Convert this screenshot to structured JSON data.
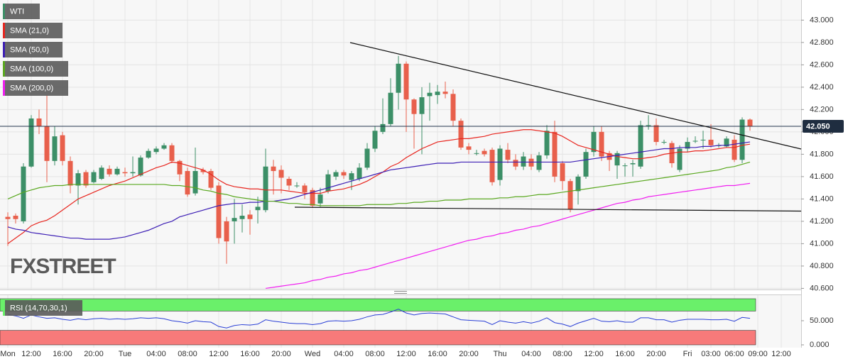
{
  "chart_data": {
    "type": "candlestick",
    "instrument": "WTI",
    "watermark": "FXSTREET",
    "up_color": "#3c8f67",
    "down_color": "#e8604c",
    "categories": [
      "Mon",
      null,
      null,
      "12:00",
      null,
      null,
      null,
      "16:00",
      null,
      null,
      null,
      "20:00",
      null,
      null,
      null,
      "Tue",
      null,
      null,
      null,
      "04:00",
      null,
      null,
      null,
      "08:00",
      null,
      null,
      null,
      "12:00",
      null,
      null,
      null,
      "16:00",
      null,
      null,
      null,
      "20:00",
      null,
      null,
      null,
      "Wed",
      null,
      null,
      null,
      "04:00",
      null,
      null,
      null,
      "08:00",
      null,
      null,
      null,
      "12:00",
      null,
      null,
      null,
      "16:00",
      null,
      null,
      null,
      "20:00",
      null,
      null,
      null,
      "Thu",
      null,
      null,
      null,
      "04:00",
      null,
      null,
      null,
      "08:00",
      null,
      null,
      null,
      "12:00",
      null,
      null,
      null,
      "16:00",
      null,
      null,
      null,
      "20:00",
      null,
      null,
      null,
      "Fri",
      null,
      null,
      "03:00",
      null,
      null,
      "06:00",
      null,
      null,
      "09:00",
      null,
      null,
      "12:00"
    ],
    "open": [
      41.24,
      41.25,
      41.2,
      41.69,
      42.12,
      42.05,
      41.74,
      41.97,
      41.74,
      41.52,
      41.64,
      41.55,
      41.58,
      41.67,
      41.62,
      41.64,
      41.63,
      41.61,
      41.77,
      41.82,
      41.85,
      41.88,
      41.74,
      41.65,
      41.45,
      41.66,
      41.65,
      41.52,
      41.2,
      41.2,
      41.22,
      41.26,
      41.3,
      41.3,
      41.69,
      41.66,
      41.58,
      41.52,
      41.52,
      41.48,
      41.36,
      41.47,
      41.6,
      41.64,
      41.57,
      41.58,
      41.68,
      41.85,
      42.0,
      42.07,
      42.35,
      42.61,
      42.29,
      42.16,
      42.32,
      42.33,
      42.36,
      42.34,
      42.1,
      41.87,
      41.81,
      41.83,
      41.84,
      41.57,
      41.84,
      41.75,
      41.69,
      41.76,
      41.66,
      41.79,
      42.0,
      41.72,
      41.56,
      41.47,
      41.6,
      41.82,
      42.0,
      41.81,
      41.7,
      41.7,
      41.71,
      41.69,
      42.06,
      42.06,
      41.91,
      41.9,
      41.66,
      41.85,
      41.92,
      41.93,
      41.93,
      41.88,
      41.87,
      41.93,
      41.75,
      42.11,
      null,
      null,
      null,
      null
    ],
    "high": [
      41.28,
      41.27,
      41.72,
      42.15,
      42.2,
      42.33,
      42.05,
      42.0,
      41.78,
      41.66,
      41.66,
      41.66,
      41.7,
      41.7,
      41.69,
      41.68,
      41.78,
      41.79,
      41.85,
      41.87,
      41.9,
      41.9,
      41.75,
      41.68,
      41.86,
      41.68,
      41.67,
      41.55,
      41.24,
      41.4,
      41.35,
      41.3,
      41.42,
      41.85,
      41.75,
      41.7,
      41.6,
      41.55,
      41.54,
      41.5,
      41.5,
      41.66,
      41.66,
      41.66,
      41.65,
      41.72,
      41.9,
      42.05,
      42.3,
      42.48,
      42.68,
      42.63,
      42.3,
      42.4,
      42.44,
      42.42,
      42.45,
      42.38,
      42.12,
      41.9,
      41.84,
      41.85,
      41.86,
      41.88,
      41.9,
      41.8,
      41.82,
      41.8,
      41.82,
      42.06,
      42.1,
      41.74,
      41.58,
      41.62,
      41.85,
      42.05,
      42.05,
      41.83,
      41.83,
      41.72,
      41.75,
      42.1,
      42.15,
      42.12,
      41.93,
      41.92,
      41.88,
      41.95,
      41.96,
      42.01,
      42.07,
      41.9,
      41.96,
      41.97,
      42.13,
      42.12,
      null,
      null,
      null,
      null
    ],
    "low": [
      40.98,
      41.18,
      41.18,
      41.68,
      41.98,
      41.55,
      41.7,
      41.7,
      41.45,
      41.35,
      41.5,
      41.54,
      41.57,
      41.6,
      41.61,
      41.6,
      41.6,
      41.6,
      41.76,
      41.8,
      41.84,
      41.72,
      41.56,
      41.42,
      41.43,
      41.62,
      41.48,
      41.0,
      40.82,
      41.0,
      41.1,
      41.08,
      41.18,
      41.28,
      41.44,
      41.45,
      41.48,
      41.5,
      41.4,
      41.32,
      41.33,
      41.45,
      41.57,
      41.58,
      41.48,
      41.56,
      41.66,
      41.82,
      41.98,
      42.05,
      42.2,
      42.0,
      41.85,
      41.8,
      42.1,
      42.25,
      42.3,
      42.05,
      41.84,
      41.8,
      41.79,
      41.78,
      41.52,
      41.52,
      41.72,
      41.66,
      41.66,
      41.66,
      41.64,
      41.76,
      41.55,
      41.48,
      41.28,
      41.35,
      41.58,
      41.78,
      41.74,
      41.65,
      41.58,
      41.6,
      41.6,
      41.67,
      42.02,
      41.88,
      41.89,
      41.68,
      41.64,
      41.82,
      41.9,
      41.85,
      41.86,
      41.86,
      41.86,
      41.73,
      41.72,
      42.01,
      null,
      null,
      null,
      null
    ],
    "close": [
      41.22,
      41.22,
      41.69,
      42.12,
      42.05,
      41.74,
      41.96,
      41.74,
      41.52,
      41.63,
      41.52,
      41.64,
      41.68,
      41.62,
      41.67,
      41.63,
      41.64,
      41.77,
      41.83,
      41.85,
      41.88,
      41.74,
      41.62,
      41.44,
      41.65,
      41.64,
      41.5,
      41.05,
      41.02,
      41.23,
      41.25,
      41.22,
      41.33,
      41.69,
      41.65,
      41.59,
      41.52,
      41.52,
      41.46,
      41.34,
      41.44,
      41.62,
      41.64,
      41.61,
      41.63,
      41.68,
      41.85,
      42.01,
      42.07,
      42.35,
      42.61,
      42.29,
      42.16,
      42.31,
      42.35,
      42.36,
      42.34,
      42.1,
      41.86,
      41.84,
      41.81,
      41.8,
      41.55,
      41.85,
      41.75,
      41.69,
      41.78,
      41.69,
      41.79,
      42.01,
      41.6,
      41.56,
      41.31,
      41.6,
      41.82,
      42.0,
      41.78,
      41.75,
      41.81,
      41.7,
      41.72,
      42.06,
      42.06,
      41.91,
      41.91,
      41.72,
      41.85,
      41.91,
      41.92,
      41.93,
      41.88,
      41.88,
      41.94,
      41.75,
      42.11,
      42.05,
      null,
      null,
      null,
      null
    ],
    "series": [
      {
        "name": "SMA (21,0)",
        "color": "#e8261f",
        "values": [
          41.0,
          41.05,
          41.1,
          41.16,
          41.19,
          41.21,
          41.25,
          41.3,
          41.35,
          41.4,
          41.43,
          41.46,
          41.49,
          41.52,
          41.54,
          41.56,
          41.59,
          41.62,
          41.65,
          41.68,
          41.7,
          41.73,
          41.72,
          41.7,
          41.68,
          41.66,
          41.62,
          41.57,
          41.53,
          41.51,
          41.5,
          41.49,
          41.49,
          41.48,
          41.48,
          41.48,
          41.47,
          41.46,
          41.45,
          41.45,
          41.45,
          41.47,
          41.48,
          41.49,
          41.51,
          41.53,
          41.56,
          41.6,
          41.64,
          41.69,
          41.72,
          41.77,
          41.81,
          41.85,
          41.88,
          41.91,
          41.92,
          41.93,
          41.94,
          41.94,
          41.95,
          41.96,
          41.98,
          41.99,
          42.0,
          42.01,
          42.02,
          42.02,
          42.01,
          42.0,
          41.99,
          41.96,
          41.92,
          41.88,
          41.86,
          41.84,
          41.82,
          41.8,
          41.78,
          41.77,
          41.76,
          41.76,
          41.77,
          41.78,
          41.8,
          41.81,
          41.82,
          41.82,
          41.83,
          41.83,
          41.84,
          41.85,
          41.86,
          41.86,
          41.88,
          41.89,
          null,
          null,
          null,
          null
        ]
      },
      {
        "name": "SMA (50,0)",
        "color": "#3d1fb5",
        "values": [
          41.15,
          41.13,
          41.12,
          41.1,
          41.09,
          41.08,
          41.07,
          41.06,
          41.05,
          41.05,
          41.04,
          41.04,
          41.04,
          41.04,
          41.05,
          41.06,
          41.08,
          41.1,
          41.12,
          41.15,
          41.18,
          41.2,
          41.24,
          41.26,
          41.28,
          41.3,
          41.32,
          41.34,
          41.35,
          41.36,
          41.36,
          41.37,
          41.37,
          41.38,
          41.38,
          41.39,
          41.4,
          41.42,
          41.44,
          41.46,
          41.48,
          41.5,
          41.52,
          41.54,
          41.56,
          41.58,
          41.6,
          41.62,
          41.64,
          41.66,
          41.67,
          41.68,
          41.69,
          41.7,
          41.71,
          41.72,
          41.72,
          41.72,
          41.73,
          41.73,
          41.73,
          41.73,
          41.73,
          41.73,
          41.73,
          41.73,
          41.73,
          41.73,
          41.73,
          41.73,
          41.73,
          41.73,
          41.73,
          41.74,
          41.75,
          41.76,
          41.77,
          41.78,
          41.79,
          41.8,
          41.81,
          41.82,
          41.83,
          41.84,
          41.85,
          41.85,
          41.86,
          41.86,
          41.86,
          41.87,
          41.87,
          41.88,
          41.88,
          41.89,
          41.9,
          41.91,
          null,
          null,
          null,
          null
        ]
      },
      {
        "name": "SMA (100,0)",
        "color": "#5aa81f",
        "values": [
          41.4,
          41.43,
          41.46,
          41.48,
          41.5,
          41.51,
          41.52,
          41.52,
          41.53,
          41.53,
          41.53,
          41.53,
          41.53,
          41.53,
          41.53,
          41.53,
          41.53,
          41.53,
          41.53,
          41.53,
          41.53,
          41.52,
          41.52,
          41.51,
          41.5,
          41.48,
          41.47,
          41.45,
          41.44,
          41.42,
          41.41,
          41.4,
          41.39,
          41.38,
          41.38,
          41.37,
          41.36,
          41.36,
          41.35,
          41.35,
          41.34,
          41.34,
          41.34,
          41.34,
          41.34,
          41.34,
          41.35,
          41.35,
          41.35,
          41.35,
          41.36,
          41.36,
          41.37,
          41.37,
          41.38,
          41.38,
          41.39,
          41.39,
          41.39,
          41.4,
          41.4,
          41.4,
          41.4,
          41.41,
          41.41,
          41.42,
          41.42,
          41.43,
          41.44,
          41.44,
          41.45,
          41.46,
          41.47,
          41.48,
          41.49,
          41.5,
          41.51,
          41.52,
          41.53,
          41.54,
          41.55,
          41.56,
          41.57,
          41.58,
          41.59,
          41.6,
          41.61,
          41.62,
          41.63,
          41.64,
          41.65,
          41.66,
          41.68,
          41.69,
          41.71,
          41.73,
          null,
          null,
          null,
          null
        ]
      },
      {
        "name": "SMA (200,0)",
        "color": "#f01ef0",
        "values": [
          null,
          null,
          null,
          null,
          null,
          null,
          null,
          null,
          null,
          null,
          null,
          null,
          null,
          null,
          null,
          null,
          null,
          null,
          null,
          null,
          null,
          null,
          null,
          null,
          null,
          null,
          null,
          null,
          null,
          null,
          null,
          null,
          null,
          40.6,
          40.61,
          40.62,
          40.63,
          40.64,
          40.65,
          40.67,
          40.68,
          40.7,
          40.71,
          40.73,
          40.74,
          40.76,
          40.77,
          40.79,
          40.81,
          40.83,
          40.85,
          40.87,
          40.89,
          40.91,
          40.93,
          40.95,
          40.97,
          40.99,
          41.01,
          41.03,
          41.04,
          41.06,
          41.07,
          41.09,
          41.1,
          41.12,
          41.13,
          41.15,
          41.16,
          41.18,
          41.2,
          41.22,
          41.24,
          41.26,
          41.28,
          41.3,
          41.32,
          41.34,
          41.36,
          41.37,
          41.39,
          41.4,
          41.42,
          41.43,
          41.44,
          41.45,
          41.46,
          41.47,
          41.48,
          41.49,
          41.5,
          41.51,
          41.52,
          41.52,
          41.53,
          41.54,
          null,
          null,
          null,
          null
        ]
      }
    ],
    "last_price": {
      "value": 42.05,
      "label": "42.050"
    },
    "ylim": [
      40.59,
      43.18
    ],
    "yticks": [
      {
        "value": 43,
        "label": "43.000"
      },
      {
        "value": 42.8,
        "label": "42.800"
      },
      {
        "value": 42.6,
        "label": "42.600"
      },
      {
        "value": 42.4,
        "label": "42.400"
      },
      {
        "value": 42.2,
        "label": "42.200"
      },
      {
        "value": 42,
        "label": "42.000"
      },
      {
        "value": 41.8,
        "label": "41.800"
      },
      {
        "value": 41.6,
        "label": "41.600"
      },
      {
        "value": 41.4,
        "label": "41.400"
      },
      {
        "value": 41.2,
        "label": "41.200"
      },
      {
        "value": 41,
        "label": "41.000"
      },
      {
        "value": 40.8,
        "label": "40.800"
      },
      {
        "value": 40.6,
        "label": "40.600"
      }
    ],
    "grid": true,
    "rsi": {
      "name": "RSI (14,70,30,1)",
      "color": "#2a3fd6",
      "overbought": 70,
      "oversold": 30,
      "overbought_color": "#6af06a",
      "oversold_color": "#f77a7a",
      "ylim": [
        0,
        100
      ],
      "yticks": [
        {
          "value": 50,
          "label": "50.000"
        },
        {
          "value": 0,
          "label": "0.000"
        }
      ],
      "values": [
        63,
        60,
        55,
        62,
        58,
        55,
        56,
        53,
        51,
        54,
        52,
        54,
        55,
        53,
        54,
        53,
        54,
        56,
        55,
        56,
        54,
        50,
        48,
        45,
        50,
        48,
        47,
        38,
        35,
        40,
        42,
        41,
        43,
        52,
        49,
        47,
        45,
        44,
        44,
        42,
        44,
        49,
        50,
        49,
        50,
        53,
        58,
        62,
        63,
        68,
        74,
        66,
        62,
        65,
        66,
        65,
        64,
        58,
        52,
        51,
        50,
        49,
        42,
        50,
        47,
        45,
        48,
        45,
        49,
        56,
        46,
        43,
        38,
        45,
        50,
        55,
        49,
        48,
        50,
        47,
        47,
        56,
        56,
        52,
        52,
        47,
        51,
        53,
        53,
        53,
        52,
        52,
        53,
        49,
        57,
        55,
        null,
        null,
        null,
        null
      ]
    }
  }
}
